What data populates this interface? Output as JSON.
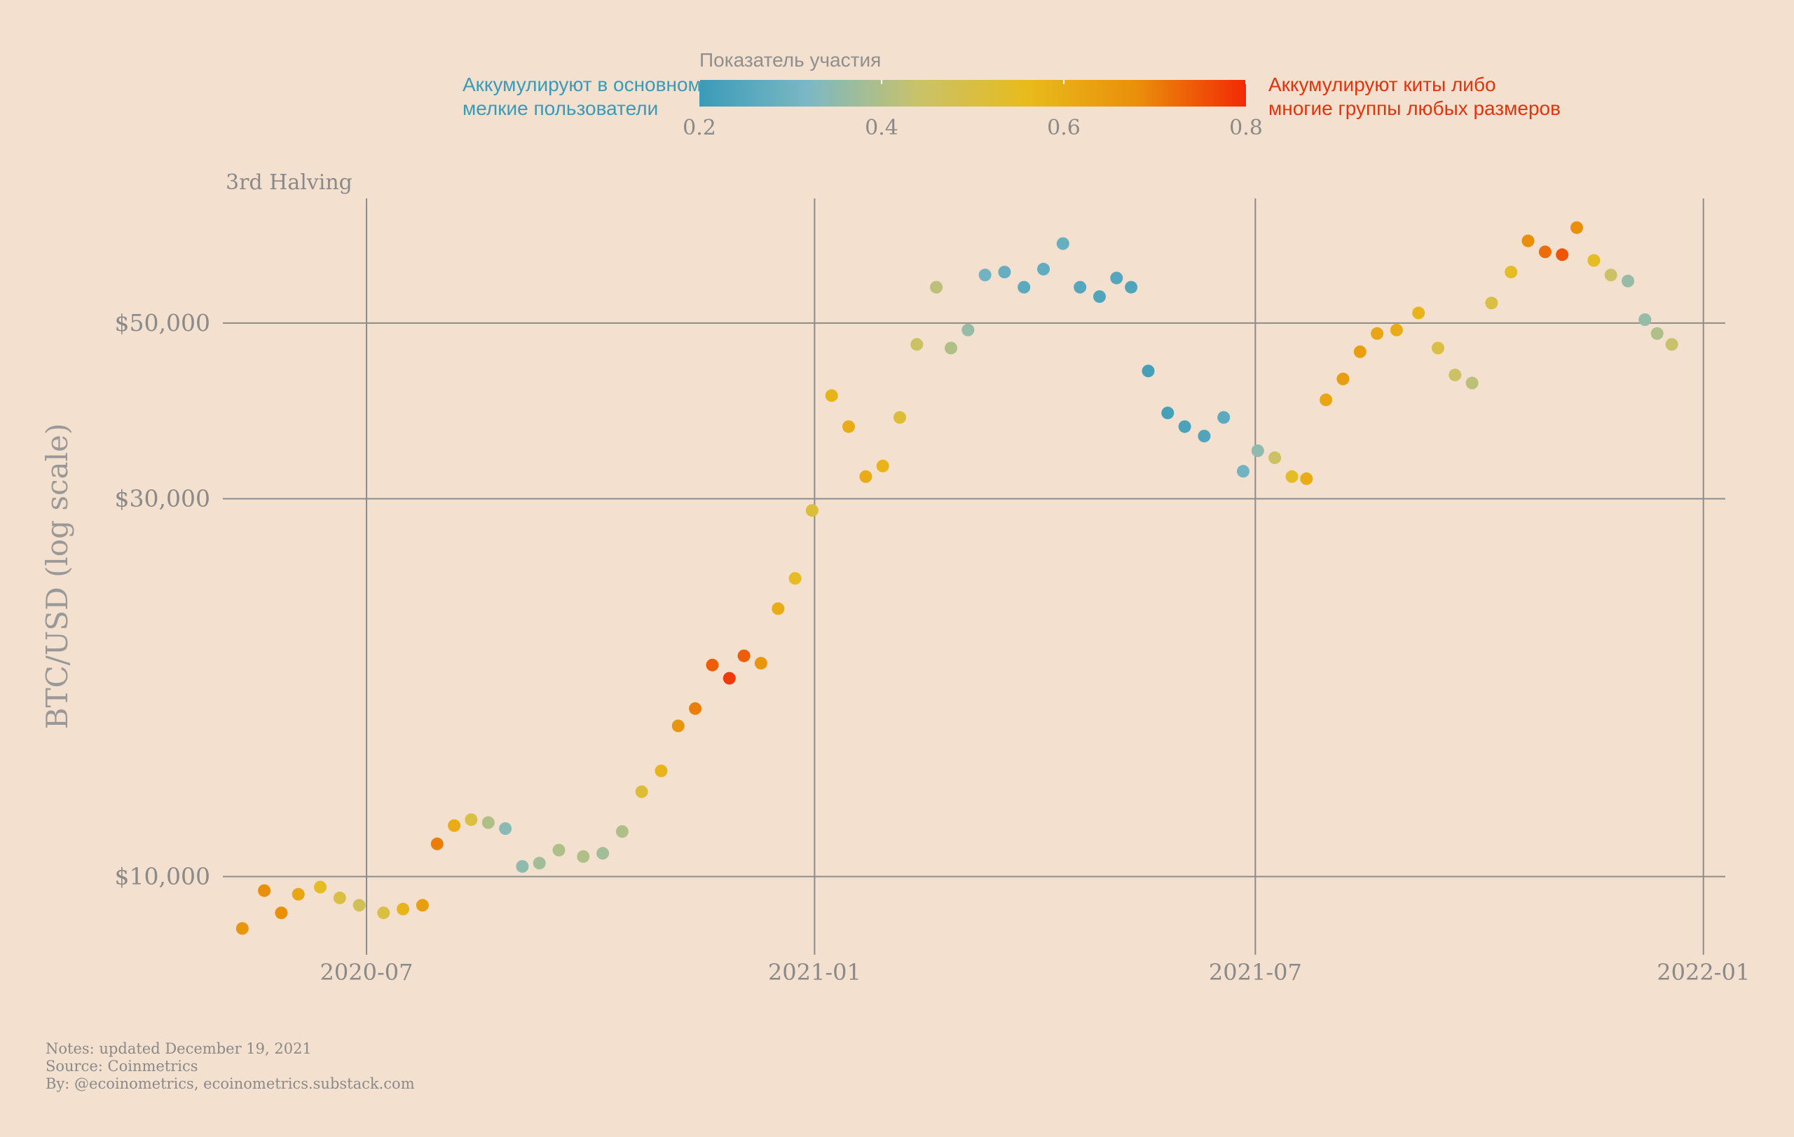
{
  "chart_data": {
    "type": "scatter",
    "ylabel": "BTC/USD (log scale)",
    "y_scale": "log",
    "ylim": [
      8000,
      72000
    ],
    "xlim": [
      "2020-05-03",
      "2022-01-10"
    ],
    "x_ticks": [
      "2020-07",
      "2021-01",
      "2021-07",
      "2022-01"
    ],
    "y_ticks": [
      {
        "value": 10000,
        "label": "$10,000"
      },
      {
        "value": 30000,
        "label": "$30,000"
      },
      {
        "value": 50000,
        "label": "$50,000"
      }
    ],
    "grid": true,
    "annotation": "3rd Halving",
    "colorbar": {
      "title": "Показатель участия",
      "range": [
        0.2,
        0.8
      ],
      "ticks": [
        "0.2",
        "0.4",
        "0.6",
        "0.8"
      ],
      "low_label": [
        "Аккумулируют в основном",
        "мелкие пользователи"
      ],
      "high_label": [
        "Аккумулируют киты либо",
        "многие группы любых размеров"
      ],
      "colors": [
        "#3a9bb8",
        "#7cb8c4",
        "#c9c26a",
        "#e8bb1c",
        "#ea8f0a",
        "#f22a05"
      ]
    },
    "notes": [
      "Notes: updated December 19, 2021",
      "Source: Coinmetrics",
      "By: @ecoinometrics, ecoinometrics.substack.com"
    ],
    "series": [
      {
        "points": [
          [
            "2020-05-11",
            8600,
            0.66
          ],
          [
            "2020-05-20",
            9600,
            0.68
          ],
          [
            "2020-05-27",
            9000,
            0.68
          ],
          [
            "2020-06-03",
            9500,
            0.62
          ],
          [
            "2020-06-12",
            9700,
            0.55
          ],
          [
            "2020-06-20",
            9400,
            0.5
          ],
          [
            "2020-06-28",
            9200,
            0.47
          ],
          [
            "2020-07-08",
            9000,
            0.5
          ],
          [
            "2020-07-16",
            9100,
            0.58
          ],
          [
            "2020-07-24",
            9200,
            0.64
          ],
          [
            "2020-07-30",
            11000,
            0.7
          ],
          [
            "2020-08-06",
            11600,
            0.6
          ],
          [
            "2020-08-13",
            11800,
            0.5
          ],
          [
            "2020-08-20",
            11700,
            0.4
          ],
          [
            "2020-08-27",
            11500,
            0.34
          ],
          [
            "2020-09-03",
            10300,
            0.35
          ],
          [
            "2020-09-10",
            10400,
            0.38
          ],
          [
            "2020-09-18",
            10800,
            0.4
          ],
          [
            "2020-09-28",
            10600,
            0.4
          ],
          [
            "2020-10-06",
            10700,
            0.38
          ],
          [
            "2020-10-14",
            11400,
            0.4
          ],
          [
            "2020-10-22",
            12800,
            0.52
          ],
          [
            "2020-10-30",
            13600,
            0.58
          ],
          [
            "2020-11-06",
            15500,
            0.66
          ],
          [
            "2020-11-13",
            16300,
            0.7
          ],
          [
            "2020-11-20",
            18500,
            0.74
          ],
          [
            "2020-11-27",
            17800,
            0.78
          ],
          [
            "2020-12-03",
            19000,
            0.74
          ],
          [
            "2020-12-10",
            18600,
            0.66
          ],
          [
            "2020-12-17",
            21800,
            0.6
          ],
          [
            "2020-12-24",
            23800,
            0.55
          ],
          [
            "2020-12-31",
            29000,
            0.52
          ],
          [
            "2021-01-08",
            40500,
            0.58
          ],
          [
            "2021-01-15",
            37000,
            0.6
          ],
          [
            "2021-01-22",
            32000,
            0.6
          ],
          [
            "2021-01-29",
            33000,
            0.58
          ],
          [
            "2021-02-05",
            38000,
            0.52
          ],
          [
            "2021-02-12",
            47000,
            0.45
          ],
          [
            "2021-02-20",
            55500,
            0.42
          ],
          [
            "2021-02-26",
            46500,
            0.4
          ],
          [
            "2021-03-05",
            49000,
            0.36
          ],
          [
            "2021-03-12",
            57500,
            0.3
          ],
          [
            "2021-03-20",
            58000,
            0.28
          ],
          [
            "2021-03-28",
            55500,
            0.26
          ],
          [
            "2021-04-05",
            58500,
            0.27
          ],
          [
            "2021-04-13",
            63000,
            0.28
          ],
          [
            "2021-04-20",
            55500,
            0.25
          ],
          [
            "2021-04-28",
            54000,
            0.24
          ],
          [
            "2021-05-05",
            57000,
            0.25
          ],
          [
            "2021-05-11",
            55500,
            0.24
          ],
          [
            "2021-05-18",
            43500,
            0.22
          ],
          [
            "2021-05-26",
            38500,
            0.22
          ],
          [
            "2021-06-02",
            37000,
            0.23
          ],
          [
            "2021-06-10",
            36000,
            0.24
          ],
          [
            "2021-06-18",
            38000,
            0.26
          ],
          [
            "2021-06-26",
            32500,
            0.3
          ],
          [
            "2021-07-02",
            34500,
            0.35
          ],
          [
            "2021-07-09",
            33800,
            0.45
          ],
          [
            "2021-07-16",
            32000,
            0.55
          ],
          [
            "2021-07-22",
            31800,
            0.6
          ],
          [
            "2021-07-30",
            40000,
            0.62
          ],
          [
            "2021-08-06",
            42500,
            0.64
          ],
          [
            "2021-08-13",
            46000,
            0.64
          ],
          [
            "2021-08-20",
            48500,
            0.62
          ],
          [
            "2021-08-28",
            49000,
            0.6
          ],
          [
            "2021-09-06",
            51500,
            0.58
          ],
          [
            "2021-09-14",
            46500,
            0.5
          ],
          [
            "2021-09-21",
            43000,
            0.45
          ],
          [
            "2021-09-28",
            42000,
            0.42
          ],
          [
            "2021-10-06",
            53000,
            0.5
          ],
          [
            "2021-10-14",
            58000,
            0.55
          ],
          [
            "2021-10-21",
            63500,
            0.68
          ],
          [
            "2021-10-28",
            61500,
            0.72
          ],
          [
            "2021-11-04",
            61000,
            0.75
          ],
          [
            "2021-11-10",
            66000,
            0.68
          ],
          [
            "2021-11-17",
            60000,
            0.55
          ],
          [
            "2021-11-24",
            57500,
            0.45
          ],
          [
            "2021-12-01",
            56500,
            0.36
          ],
          [
            "2021-12-08",
            50500,
            0.36
          ],
          [
            "2021-12-13",
            48500,
            0.4
          ],
          [
            "2021-12-19",
            47000,
            0.44
          ]
        ]
      }
    ]
  }
}
